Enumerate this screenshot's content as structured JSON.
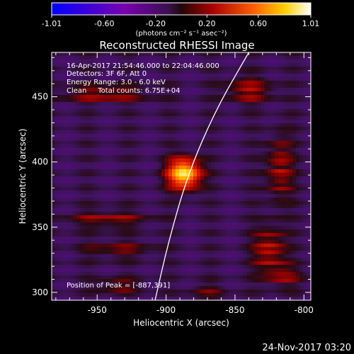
{
  "colorbar": {
    "tick_labels": [
      "-1.01",
      "-0.60",
      "-0.20",
      "0.20",
      "0.60",
      "1.01"
    ],
    "tick_values": [
      -1.01,
      -0.6,
      -0.2,
      0.2,
      0.6,
      1.01
    ],
    "unit_label": "(photons cm⁻² s⁻¹ asec⁻²)"
  },
  "title": "Reconstructed RHESSI Image",
  "info": {
    "time_range": "16-Apr-2017 21:54:46.000 to 22:04:46.000",
    "detectors": "Detectors: 3F 6F, Att 0",
    "energy": "Energy Range: 3.0 - 6.0 keV",
    "clean": "Clean     Total counts: 6.75E+04",
    "peak": "Position of Peak = [-887,391]"
  },
  "axes": {
    "xlabel": "Heliocentric X (arcsec)",
    "ylabel": "Heliocentric Y (arcsec)",
    "x_ticks": [
      "-950",
      "-900",
      "-850",
      "-800"
    ],
    "y_ticks": [
      "300",
      "350",
      "400",
      "450"
    ]
  },
  "footer_timestamp": "24-Nov-2017 03:20",
  "chart_data": {
    "type": "heatmap",
    "title": "Reconstructed RHESSI Image",
    "xlabel": "Heliocentric X (arcsec)",
    "ylabel": "Heliocentric Y (arcsec)",
    "xlim": [
      -983,
      -795
    ],
    "ylim": [
      294,
      484
    ],
    "clim": [
      -1.01,
      1.01
    ],
    "peak": {
      "x": -887,
      "y": 391,
      "value": 1.01
    },
    "limb_points": [
      [
        -908,
        294
      ],
      [
        -898,
        340
      ],
      [
        -884,
        391
      ],
      [
        -864,
        440
      ],
      [
        -840,
        484
      ]
    ],
    "sources": [
      {
        "x": -887,
        "y": 391,
        "sx": 8,
        "sy": 8,
        "amp": 1.0
      },
      {
        "x": -945,
        "y": 452,
        "sx": 22,
        "sy": 5,
        "amp": 0.35
      },
      {
        "x": -942,
        "y": 356,
        "sx": 20,
        "sy": 5,
        "amp": 0.3
      },
      {
        "x": -935,
        "y": 333,
        "sx": 18,
        "sy": 5,
        "amp": 0.25
      },
      {
        "x": -935,
        "y": 305,
        "sx": 12,
        "sy": 4,
        "amp": 0.28
      },
      {
        "x": -825,
        "y": 333,
        "sx": 8,
        "sy": 12,
        "amp": 0.45
      },
      {
        "x": -818,
        "y": 395,
        "sx": 7,
        "sy": 18,
        "amp": 0.38
      },
      {
        "x": -840,
        "y": 455,
        "sx": 12,
        "sy": 7,
        "amp": 0.38
      },
      {
        "x": -815,
        "y": 312,
        "sx": 10,
        "sy": 6,
        "amp": 0.3
      },
      {
        "x": -870,
        "y": 300,
        "sx": 10,
        "sy": 5,
        "amp": 0.2
      }
    ]
  }
}
